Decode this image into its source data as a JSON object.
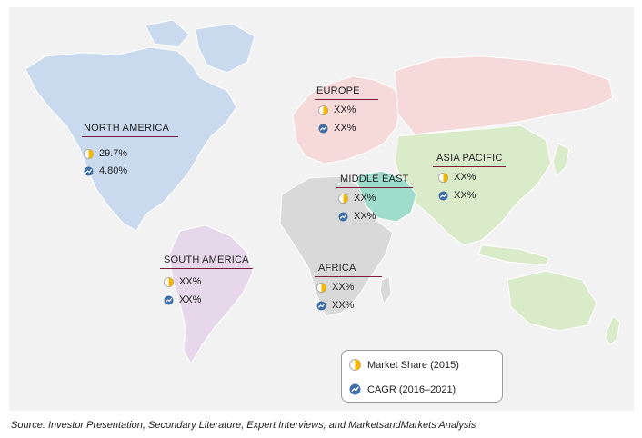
{
  "regions": {
    "north_america": {
      "name": "NORTH AMERICA",
      "market_share": "29.7%",
      "cagr": "4.80%"
    },
    "europe": {
      "name": "EUROPE",
      "market_share": "XX%",
      "cagr": "XX%"
    },
    "asia_pacific": {
      "name": "ASIA PACIFIC",
      "market_share": "XX%",
      "cagr": "XX%"
    },
    "middle_east": {
      "name": "MIDDLE EAST",
      "market_share": "XX%",
      "cagr": "XX%"
    },
    "south_america": {
      "name": "SOUTH AMERICA",
      "market_share": "XX%",
      "cagr": "XX%"
    },
    "africa": {
      "name": "AFRICA",
      "market_share": "XX%",
      "cagr": "XX%"
    }
  },
  "legend": {
    "market_share_label": "Market Share (2015)",
    "cagr_label": "CAGR (2016–2021)"
  },
  "source": "Source: Investor Presentation, Secondary Literature, Expert Interviews, and MarketsandMarkets Analysis",
  "icons": {
    "market_share": "pie-chart-icon",
    "cagr": "trend-up-icon"
  },
  "colors": {
    "north_america": "#c9d9ee",
    "europe": "#f6dada",
    "asia_pacific": "#d9ebc9",
    "middle_east": "#9fdccc",
    "south_america": "#e6d8ea",
    "africa": "#d9d9d9",
    "other_land": "#d9d9d9",
    "label_underline": "#7a1f3a",
    "pie_fill": "#f5b800",
    "cagr_fill": "#3f6ea6"
  }
}
